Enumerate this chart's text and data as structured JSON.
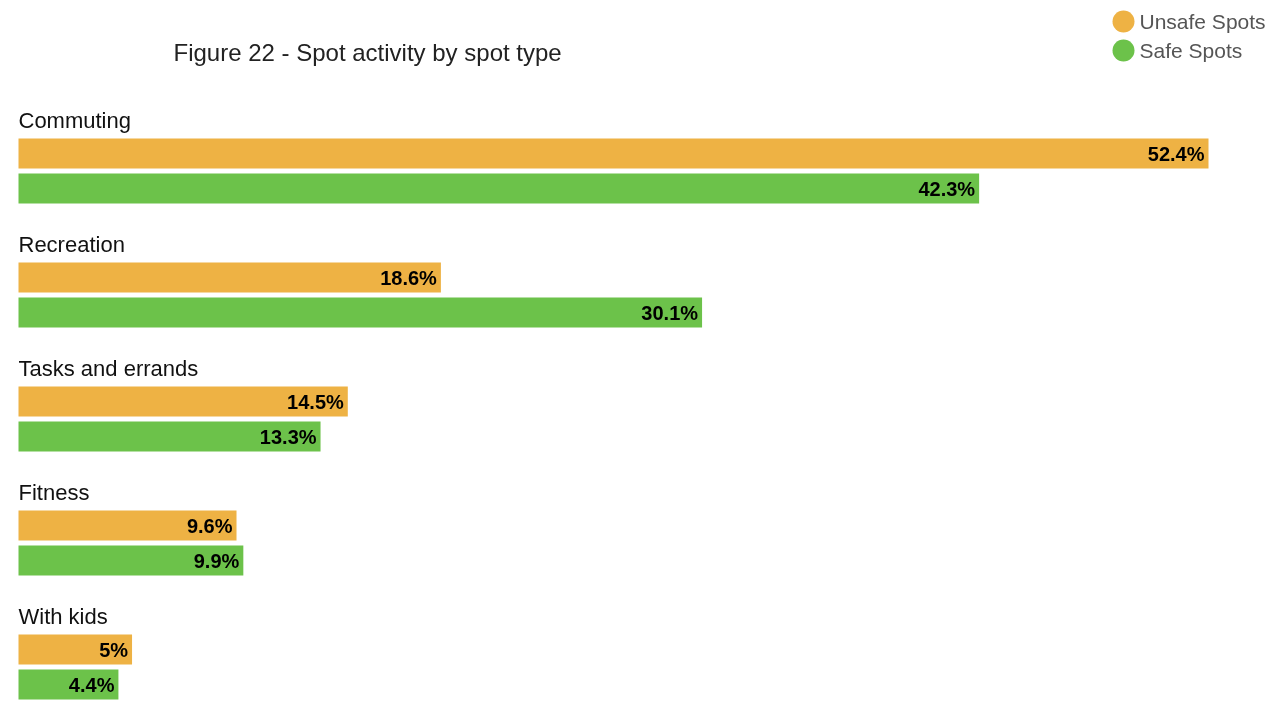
{
  "chart_data": {
    "type": "bar",
    "orientation": "horizontal",
    "title": "Figure 22 - Spot activity by spot type",
    "categories": [
      "Commuting",
      "Recreation",
      "Tasks and errands",
      "Fitness",
      "With kids"
    ],
    "series": [
      {
        "name": "Unsafe Spots",
        "color": "#eeb244",
        "values": [
          52.4,
          18.6,
          14.5,
          9.6,
          5
        ],
        "value_labels": [
          "52.4%",
          "18.6%",
          "14.5%",
          "9.6%",
          "5%"
        ]
      },
      {
        "name": "Safe Spots",
        "color": "#6cc24a",
        "values": [
          42.3,
          30.1,
          13.3,
          9.9,
          4.4
        ],
        "value_labels": [
          "42.3%",
          "30.1%",
          "13.3%",
          "9.9%",
          "4.4%"
        ]
      }
    ],
    "legend": "top right",
    "grid": false
  }
}
